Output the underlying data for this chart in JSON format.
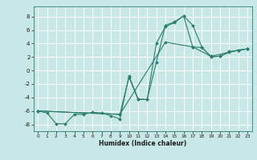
{
  "background_color": "#c8e8e8",
  "grid_color": "#ffffff",
  "line_color": "#2d7d6b",
  "marker_color": "#2d7d6b",
  "xlabel": "Humidex (Indice chaleur)",
  "xlim": [
    -0.5,
    23.5
  ],
  "ylim": [
    -9,
    9.5
  ],
  "yticks": [
    -8,
    -6,
    -4,
    -2,
    0,
    2,
    4,
    6,
    8
  ],
  "xticks": [
    0,
    1,
    2,
    3,
    4,
    5,
    6,
    7,
    8,
    9,
    10,
    11,
    12,
    13,
    14,
    15,
    16,
    17,
    18,
    19,
    20,
    21,
    22,
    23
  ],
  "series1_x": [
    0,
    1,
    2,
    3,
    4,
    5,
    6,
    7,
    8,
    9,
    10,
    11,
    12,
    13,
    14,
    15,
    16,
    17,
    18,
    19,
    20,
    21,
    22,
    23
  ],
  "series1_y": [
    -6.0,
    -6.3,
    -7.9,
    -7.9,
    -6.5,
    -6.5,
    -6.2,
    -6.3,
    -6.7,
    -7.2,
    -0.8,
    -4.2,
    -4.3,
    4.0,
    6.5,
    7.1,
    8.1,
    6.7,
    3.5,
    2.0,
    2.1,
    2.8,
    3.0,
    3.2
  ],
  "series2_x": [
    0,
    9,
    10,
    11,
    12,
    13,
    14,
    15,
    16,
    17,
    18,
    19,
    20,
    21,
    22,
    23
  ],
  "series2_y": [
    -6.0,
    -6.5,
    -1.0,
    -4.3,
    -4.3,
    1.2,
    6.7,
    7.2,
    8.1,
    3.5,
    3.4,
    2.1,
    2.1,
    2.7,
    3.0,
    3.2
  ],
  "series3_x": [
    0,
    9,
    14,
    17,
    19,
    22,
    23
  ],
  "series3_y": [
    -6.0,
    -6.5,
    4.2,
    3.5,
    2.1,
    3.0,
    3.2
  ]
}
